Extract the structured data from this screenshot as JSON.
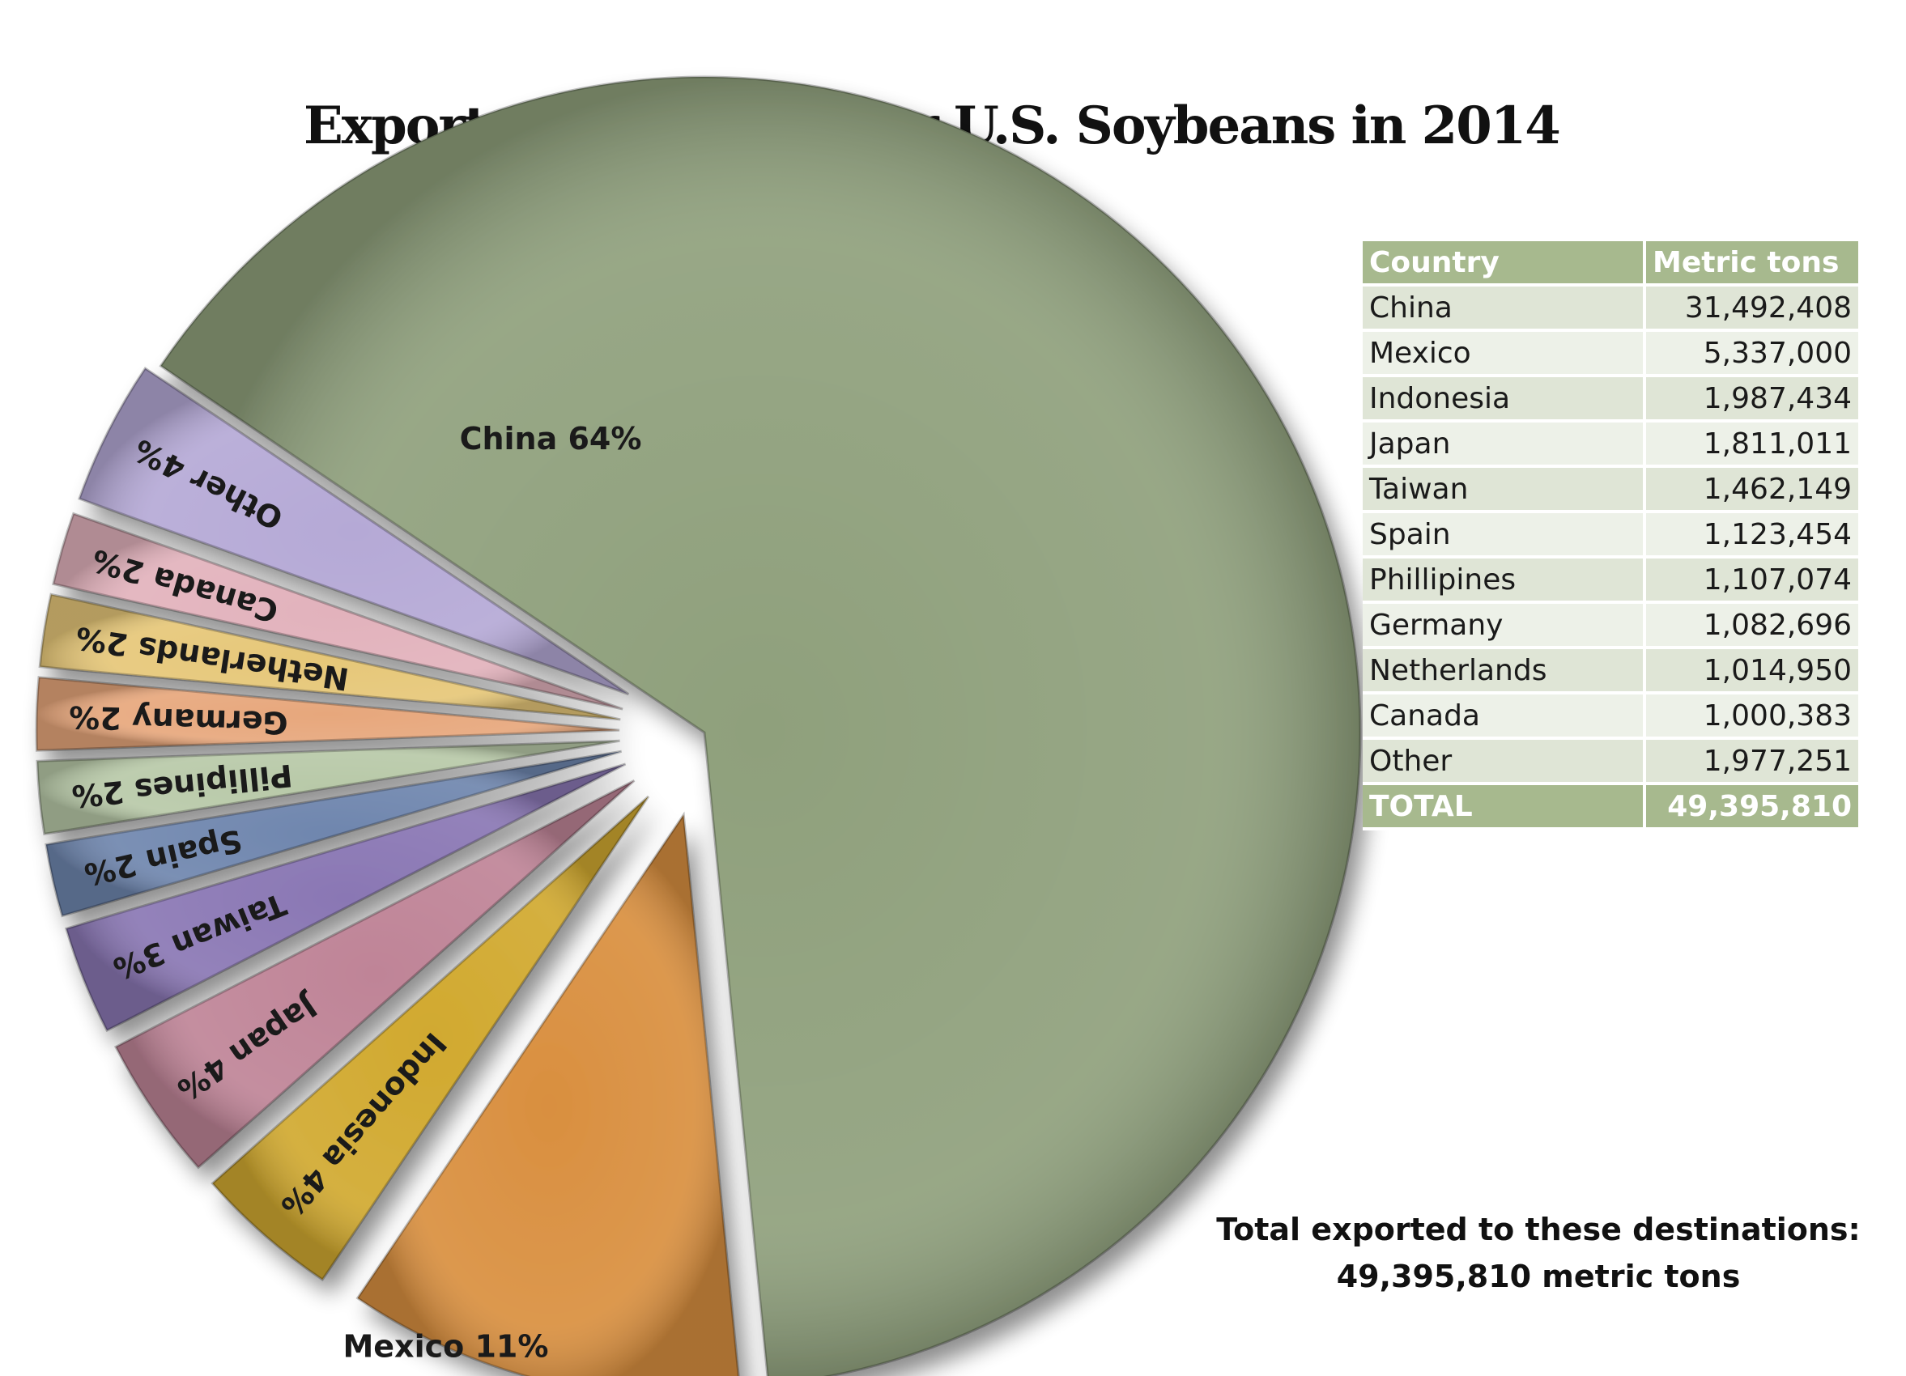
{
  "chart_data": {
    "type": "pie",
    "title": "Export destinations for U.S. Soybeans in 2014",
    "slices": [
      {
        "label": "China 64%",
        "percent": 64,
        "color": "#8fa07c"
      },
      {
        "label": "Mexico 11%",
        "percent": 11,
        "color": "#d98f3f"
      },
      {
        "label": "Indonesia 4%",
        "percent": 4,
        "color": "#d1a92f"
      },
      {
        "label": "Japan 4%",
        "percent": 4,
        "color": "#bf8497"
      },
      {
        "label": "Taiwan 3%",
        "percent": 3,
        "color": "#8a77b4"
      },
      {
        "label": "Spain 2%",
        "percent": 2,
        "color": "#6f86ae"
      },
      {
        "label": "Pillipines 2%",
        "percent": 2,
        "color": "#b8c9a8"
      },
      {
        "label": "Germany 2%",
        "percent": 2,
        "color": "#e7a77c"
      },
      {
        "label": "Netherlands 2%",
        "percent": 2,
        "color": "#e6c778"
      },
      {
        "label": "Canada 2%",
        "percent": 2,
        "color": "#e2b2bc"
      },
      {
        "label": "Other 4%",
        "percent": 4,
        "color": "#b5a9d6"
      }
    ]
  },
  "table": {
    "headers": [
      "Country",
      "Metric tons"
    ],
    "rows": [
      [
        "China",
        "31,492,408"
      ],
      [
        "Mexico",
        "5,337,000"
      ],
      [
        "Indonesia",
        "1,987,434"
      ],
      [
        "Japan",
        "1,811,011"
      ],
      [
        "Taiwan",
        "1,462,149"
      ],
      [
        "Spain",
        "1,123,454"
      ],
      [
        "Phillipines",
        "1,107,074"
      ],
      [
        "Germany",
        "1,082,696"
      ],
      [
        "Netherlands",
        "1,014,950"
      ],
      [
        "Canada",
        "1,000,383"
      ],
      [
        "Other",
        "1,977,251"
      ]
    ],
    "total": [
      "TOTAL",
      "49,395,810"
    ]
  },
  "footnote": {
    "line1": "Total exported to these destinations:",
    "line2": "49,395,810 metric tons"
  }
}
